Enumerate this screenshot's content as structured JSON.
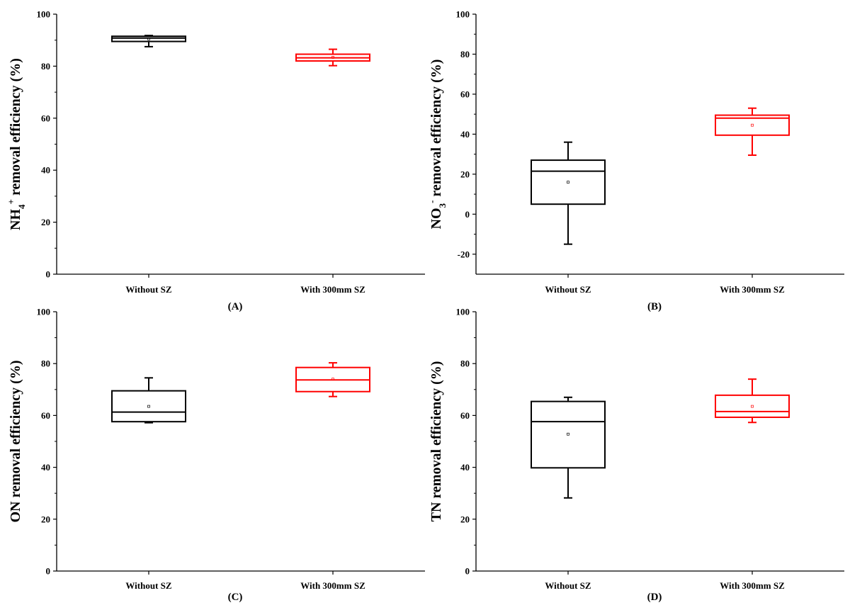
{
  "chart_data": [
    {
      "type": "box",
      "panel_label": "(A)",
      "ylabel_main": "NH",
      "ylabel_sub": "4",
      "ylabel_sup": "+",
      "ylabel_rest": " removal efficiency (%)",
      "ylim": [
        0,
        100
      ],
      "yticks": [
        0,
        20,
        40,
        60,
        80,
        100
      ],
      "categories": [
        "Without SZ",
        "With 300mm SZ"
      ],
      "boxes": [
        {
          "min": 87.5,
          "q1": 89.5,
          "median": 90.8,
          "q3": 91.5,
          "max": 91.8,
          "mean": 90.5,
          "color": "#000000"
        },
        {
          "min": 80.2,
          "q1": 82.0,
          "median": 83.2,
          "q3": 84.6,
          "max": 86.5,
          "mean": 83.4,
          "color": "#ff0000"
        }
      ]
    },
    {
      "type": "box",
      "panel_label": "(B)",
      "ylabel_main": "NO",
      "ylabel_sub": "3",
      "ylabel_sup": "-",
      "ylabel_rest": " removal efficiency (%)",
      "ylim": [
        -30,
        100
      ],
      "yticks": [
        -20,
        0,
        20,
        40,
        60,
        80,
        100
      ],
      "categories": [
        "Without SZ",
        "With 300mm SZ"
      ],
      "boxes": [
        {
          "min": -15,
          "q1": 5,
          "median": 21.5,
          "q3": 27,
          "max": 36,
          "mean": 16,
          "color": "#000000"
        },
        {
          "min": 29.5,
          "q1": 39.5,
          "median": 48,
          "q3": 49.5,
          "max": 53,
          "mean": 44.5,
          "color": "#ff0000"
        }
      ]
    },
    {
      "type": "box",
      "panel_label": "(C)",
      "ylabel_main": "ON removal efficiency (%)",
      "ylabel_sub": "",
      "ylabel_sup": "",
      "ylabel_rest": "",
      "ylim": [
        0,
        100
      ],
      "yticks": [
        0,
        20,
        40,
        60,
        80,
        100
      ],
      "categories": [
        "Without SZ",
        "With 300mm SZ"
      ],
      "boxes": [
        {
          "min": 57.2,
          "q1": 57.6,
          "median": 61.3,
          "q3": 69.5,
          "max": 74.5,
          "mean": 63.5,
          "color": "#000000"
        },
        {
          "min": 67.3,
          "q1": 69.2,
          "median": 73.7,
          "q3": 78.5,
          "max": 80.3,
          "mean": 74.0,
          "color": "#ff0000"
        }
      ]
    },
    {
      "type": "box",
      "panel_label": "(D)",
      "ylabel_main": "TN removal efficiency (%)",
      "ylabel_sub": "",
      "ylabel_sup": "",
      "ylabel_rest": "",
      "ylim": [
        0,
        100
      ],
      "yticks": [
        0,
        20,
        40,
        60,
        80,
        100
      ],
      "categories": [
        "Without SZ",
        "With 300mm SZ"
      ],
      "boxes": [
        {
          "min": 28.2,
          "q1": 39.8,
          "median": 57.6,
          "q3": 65.4,
          "max": 67.0,
          "mean": 52.8,
          "color": "#000000"
        },
        {
          "min": 57.3,
          "q1": 59.3,
          "median": 61.5,
          "q3": 67.8,
          "max": 74.0,
          "mean": 63.5,
          "color": "#ff0000"
        }
      ]
    }
  ]
}
